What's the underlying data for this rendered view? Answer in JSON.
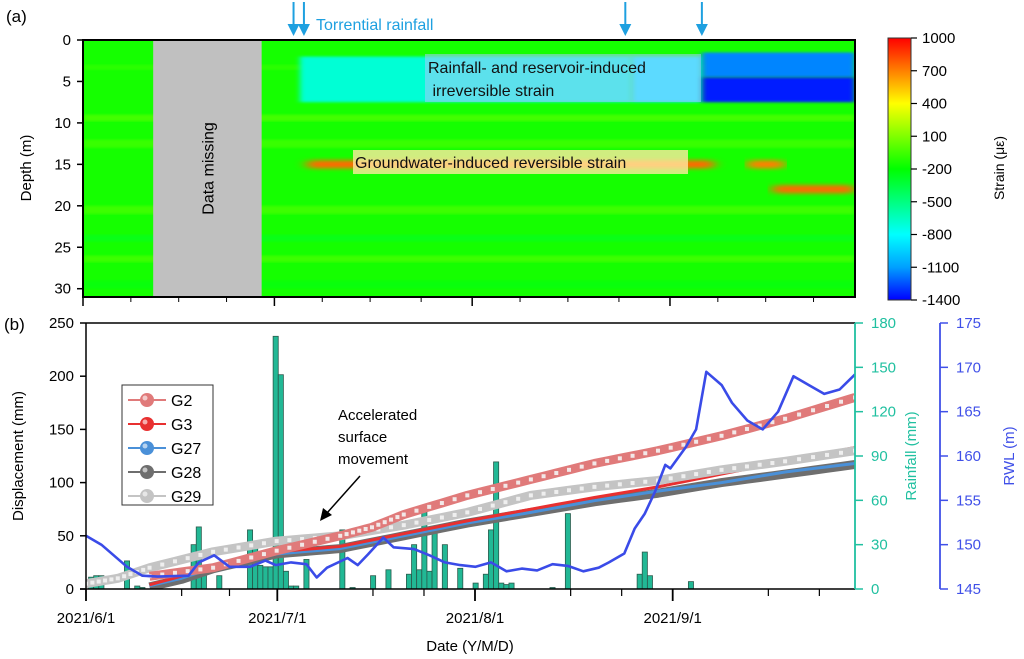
{
  "chart_data": [
    {
      "panel_label": "(a)",
      "type": "heatmap",
      "title": "",
      "xlabel": "",
      "ylabel": "Depth (m)",
      "ylim": [
        0,
        31
      ],
      "y_ticks": [
        "0",
        "5",
        "10",
        "15",
        "20",
        "25",
        "30"
      ],
      "x_range_dates": [
        "2021/6/1",
        "2021/9/30"
      ],
      "colorbar": {
        "label": "Strain (με)",
        "range": [
          -1400,
          1000
        ],
        "ticks": [
          "1000",
          "700",
          "400",
          "100",
          "-200",
          "-500",
          "-800",
          "-1100",
          "-1400"
        ],
        "colormap": [
          "#0000ff",
          "#00a0ff",
          "#00ffff",
          "#00ff80",
          "#00ff00",
          "#80ff00",
          "#ffff00",
          "#ff8000",
          "#ff0000"
        ]
      },
      "background_strain": -150,
      "missing_data": {
        "label": "Data missing",
        "start": "2021/6/12",
        "end": "2021/6/29",
        "color": "#c0c0c0"
      },
      "regions": [
        {
          "name": "shallow-band-early",
          "depth": [
            2,
            7.5
          ],
          "start": "2021/7/5",
          "end": "2021/8/26",
          "strain": -700
        },
        {
          "name": "shallow-band-mid",
          "depth": [
            2,
            7.5
          ],
          "start": "2021/8/26",
          "end": "2021/9/6",
          "strain": -850
        },
        {
          "name": "shallow-band-late-upper",
          "depth": [
            1.5,
            4.5
          ],
          "start": "2021/9/6",
          "end": "2021/9/30",
          "strain": -1150
        },
        {
          "name": "shallow-band-late-lower",
          "depth": [
            4.5,
            7.5
          ],
          "start": "2021/9/6",
          "end": "2021/9/30",
          "strain": -1350
        },
        {
          "name": "groundwater-band",
          "depth": [
            14.5,
            15.5
          ],
          "start": "2021/7/6",
          "end": "2021/9/8",
          "strain": 750
        },
        {
          "name": "groundwater-band-2",
          "depth": [
            14.5,
            15.5
          ],
          "start": "2021/9/13",
          "end": "2021/9/19",
          "strain": 700
        },
        {
          "name": "deep-band",
          "depth": [
            17.5,
            18.5
          ],
          "start": "2021/9/17",
          "end": "2021/9/30",
          "strain": 750
        }
      ],
      "annotations": [
        {
          "text": "Rainfall- and reservoir-induced",
          "line2": " irreversible strain"
        },
        {
          "text": "Groundwater-induced reversible strain"
        },
        {
          "text": "Torrential rainfall",
          "arrow_dates": [
            "2021/7/4",
            "2021/7/5",
            "2021/8/25",
            "2021/9/6"
          ],
          "color": "#1ea0e0"
        }
      ]
    },
    {
      "panel_label": "(b)",
      "type": "line",
      "xlabel": "Date (Y/M/D)",
      "ylabel": "Displacement (mm)",
      "ylim": [
        0,
        250
      ],
      "y_ticks": [
        "0",
        "50",
        "100",
        "150",
        "200",
        "250"
      ],
      "x_ticks": [
        "2021/6/1",
        "2021/7/1",
        "2021/8/1",
        "2021/9/1"
      ],
      "x_days_range": [
        0,
        121
      ],
      "x_tick_days": [
        0,
        30,
        61,
        92
      ],
      "x_minor_days": [
        15,
        45,
        76,
        107
      ],
      "y2": {
        "label": "Rainfall (mm)",
        "ylim": [
          0,
          180
        ],
        "ticks": [
          "0",
          "30",
          "60",
          "90",
          "120",
          "150",
          "180"
        ],
        "color": "#20c0a0"
      },
      "y3": {
        "label": "RWL (m)",
        "ylim": [
          145,
          175
        ],
        "ticks": [
          "145",
          "150",
          "155",
          "160",
          "165",
          "170",
          "175"
        ],
        "color": "#4050e8"
      },
      "legend": {
        "position": "upper-left",
        "entries": [
          "G2",
          "G3",
          "G27",
          "G28",
          "G29"
        ]
      },
      "series": [
        {
          "name": "G2",
          "color": "#e07a7a",
          "marker": "circle",
          "points": [
            [
              10,
              12
            ],
            [
              20,
              20
            ],
            [
              30,
              36
            ],
            [
              40,
              50
            ],
            [
              45,
              58
            ],
            [
              50,
              70
            ],
            [
              60,
              88
            ],
            [
              70,
              103
            ],
            [
              80,
              118
            ],
            [
              90,
              130
            ],
            [
              100,
              144
            ],
            [
              110,
              160
            ],
            [
              121,
              180
            ]
          ]
        },
        {
          "name": "G3",
          "color": "#e83030",
          "marker": "circle",
          "points": [
            [
              10,
              4
            ],
            [
              15,
              12
            ],
            [
              20,
              22
            ],
            [
              30,
              35
            ],
            [
              40,
              40
            ],
            [
              50,
              52
            ],
            [
              60,
              64
            ],
            [
              70,
              75
            ],
            [
              80,
              86
            ],
            [
              90,
              96
            ],
            [
              100,
              108
            ],
            [
              110,
              120
            ],
            [
              121,
              133
            ]
          ]
        },
        {
          "name": "G27",
          "color": "#4a90d8",
          "marker": "circle",
          "points": [
            [
              10,
              3
            ],
            [
              15,
              10
            ],
            [
              20,
              20
            ],
            [
              30,
              33
            ],
            [
              40,
              38
            ],
            [
              50,
              50
            ],
            [
              60,
              62
            ],
            [
              70,
              72
            ],
            [
              80,
              83
            ],
            [
              90,
              92
            ],
            [
              100,
              100
            ],
            [
              110,
              110
            ],
            [
              121,
              118
            ]
          ]
        },
        {
          "name": "G28",
          "color": "#6e6e6e",
          "marker": "circle",
          "points": [
            [
              10,
              2
            ],
            [
              15,
              9
            ],
            [
              20,
              19
            ],
            [
              30,
              33
            ],
            [
              40,
              38
            ],
            [
              50,
              50
            ],
            [
              60,
              62
            ],
            [
              70,
              72
            ],
            [
              80,
              82
            ],
            [
              90,
              90
            ],
            [
              100,
              100
            ],
            [
              110,
              108
            ],
            [
              121,
              117
            ]
          ]
        },
        {
          "name": "G29",
          "color": "#c4c4c4",
          "marker": "circle",
          "points": [
            [
              0,
              5
            ],
            [
              5,
              10
            ],
            [
              10,
              20
            ],
            [
              20,
              35
            ],
            [
              30,
              45
            ],
            [
              40,
              50
            ],
            [
              50,
              60
            ],
            [
              60,
              72
            ],
            [
              70,
              88
            ],
            [
              80,
              96
            ],
            [
              90,
              102
            ],
            [
              100,
              112
            ],
            [
              110,
              120
            ],
            [
              121,
              130
            ]
          ]
        }
      ],
      "rwl": [
        [
          0,
          151
        ],
        [
          3,
          150
        ],
        [
          8,
          147.5
        ],
        [
          11,
          146.5
        ],
        [
          14,
          146.4
        ],
        [
          20,
          146.5
        ],
        [
          22,
          148
        ],
        [
          25,
          148.8
        ],
        [
          28,
          147.5
        ],
        [
          32,
          147.5
        ],
        [
          35,
          148.2
        ],
        [
          37,
          147.7
        ],
        [
          40,
          148
        ],
        [
          43,
          147.8
        ],
        [
          45,
          146.3
        ],
        [
          47,
          147.4
        ],
        [
          51,
          148.5
        ],
        [
          53,
          147.7
        ],
        [
          55,
          148.9
        ],
        [
          58,
          150.8
        ],
        [
          60,
          149.7
        ],
        [
          64,
          149.5
        ],
        [
          67,
          148.8
        ],
        [
          70,
          148
        ],
        [
          73,
          147.7
        ],
        [
          76,
          147.5
        ],
        [
          79,
          148
        ],
        [
          82,
          147
        ],
        [
          85,
          147.3
        ],
        [
          88,
          147.1
        ],
        [
          91,
          147.8
        ],
        [
          94,
          147.6
        ],
        [
          97,
          147
        ],
        [
          100,
          147.4
        ],
        [
          102,
          148
        ],
        [
          105,
          149
        ],
        [
          107,
          151.8
        ],
        [
          109,
          153.5
        ],
        [
          111,
          156
        ],
        [
          113,
          159
        ],
        [
          114,
          158.6
        ],
        [
          117,
          161
        ],
        [
          119,
          163
        ],
        [
          121,
          169.5
        ],
        [
          124,
          168
        ],
        [
          126,
          166
        ],
        [
          129,
          164
        ],
        [
          132,
          163
        ],
        [
          135,
          165
        ],
        [
          138,
          169
        ],
        [
          141,
          168
        ],
        [
          144,
          167
        ],
        [
          147,
          167.5
        ],
        [
          150,
          169.2
        ]
      ],
      "rainfall": [
        [
          1,
          8
        ],
        [
          2,
          9
        ],
        [
          3,
          9
        ],
        [
          8,
          19
        ],
        [
          10,
          2
        ],
        [
          11,
          1
        ],
        [
          21,
          30
        ],
        [
          22,
          42
        ],
        [
          23,
          15
        ],
        [
          26,
          9
        ],
        [
          32,
          40
        ],
        [
          33,
          30
        ],
        [
          34,
          16
        ],
        [
          35,
          15
        ],
        [
          36,
          15
        ],
        [
          37,
          171
        ],
        [
          38,
          145
        ],
        [
          39,
          12
        ],
        [
          40,
          2
        ],
        [
          41,
          2
        ],
        [
          43,
          20
        ],
        [
          50,
          40
        ],
        [
          52,
          1
        ],
        [
          56,
          9
        ],
        [
          59,
          13
        ],
        [
          63,
          10
        ],
        [
          64,
          30
        ],
        [
          65,
          13
        ],
        [
          66,
          52
        ],
        [
          67,
          12
        ],
        [
          68,
          40
        ],
        [
          70,
          30
        ],
        [
          73,
          14
        ],
        [
          76,
          4
        ],
        [
          78,
          10
        ],
        [
          79,
          40
        ],
        [
          80,
          86
        ],
        [
          81,
          4
        ],
        [
          82,
          3
        ],
        [
          83,
          4
        ],
        [
          91,
          1
        ],
        [
          94,
          51
        ],
        [
          108,
          10
        ],
        [
          109,
          25
        ],
        [
          110,
          9
        ],
        [
          118,
          5
        ]
      ],
      "annotations": [
        {
          "text": "Accelerated",
          "line2": "surface",
          "line3": "movement"
        }
      ]
    }
  ]
}
